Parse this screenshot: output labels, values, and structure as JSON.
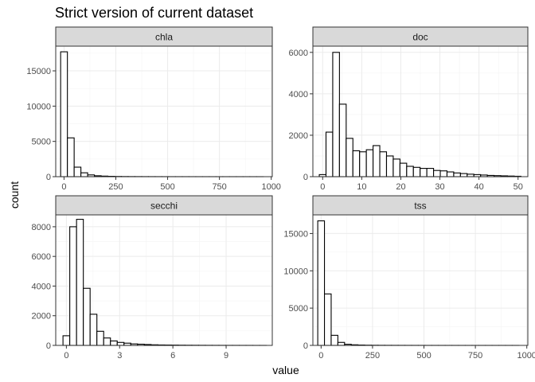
{
  "chart_data": {
    "type": "bar",
    "title": "Strict version of current dataset",
    "xlabel": "value",
    "ylabel": "count",
    "facets": [
      {
        "name": "chla",
        "xlim": [
          -40,
          1005
        ],
        "ylim": [
          0,
          18500
        ],
        "xticks": [
          0,
          250,
          500,
          750,
          1000
        ],
        "xtick_labels": [
          "0",
          "250",
          "500",
          "750",
          "1000"
        ],
        "yticks": [
          0,
          5000,
          10000,
          15000
        ],
        "ytick_labels": [
          "0",
          "5000",
          "10000",
          "15000"
        ],
        "binwidth": 32.6,
        "bin_start": -16.3,
        "counts": [
          17700,
          5500,
          1350,
          550,
          250,
          130,
          80,
          50,
          30,
          20,
          15,
          12,
          10,
          8,
          6,
          5,
          4,
          3,
          3,
          2,
          2,
          2,
          1,
          1,
          1,
          1,
          1,
          1,
          1,
          1
        ]
      },
      {
        "name": "doc",
        "xlim": [
          -2.5,
          52.5
        ],
        "ylim": [
          0,
          6300
        ],
        "xticks": [
          0,
          10,
          20,
          30,
          40,
          50
        ],
        "xtick_labels": [
          "0",
          "10",
          "20",
          "30",
          "40",
          "50"
        ],
        "yticks": [
          0,
          2000,
          4000,
          6000
        ],
        "ytick_labels": [
          "0",
          "2000",
          "4000",
          "6000"
        ],
        "binwidth": 1.72,
        "bin_start": -0.86,
        "counts": [
          100,
          2150,
          6000,
          3500,
          1850,
          1250,
          1200,
          1300,
          1500,
          1200,
          1000,
          850,
          650,
          500,
          450,
          400,
          400,
          300,
          280,
          230,
          180,
          150,
          120,
          100,
          80,
          60,
          50,
          40,
          30,
          20
        ]
      },
      {
        "name": "secchi",
        "xlim": [
          -0.6,
          11.6
        ],
        "ylim": [
          0,
          8800
        ],
        "xticks": [
          0,
          3,
          6,
          9
        ],
        "xtick_labels": [
          "0",
          "3",
          "6",
          "9"
        ],
        "yticks": [
          0,
          2000,
          4000,
          6000,
          8000
        ],
        "ytick_labels": [
          "0",
          "2000",
          "4000",
          "6000",
          "8000"
        ],
        "binwidth": 0.382,
        "bin_start": -0.191,
        "counts": [
          650,
          8000,
          8500,
          3850,
          2100,
          950,
          500,
          300,
          200,
          150,
          100,
          80,
          60,
          40,
          30,
          25,
          20,
          15,
          12,
          10,
          8,
          6,
          5,
          4,
          3,
          3,
          2,
          2,
          1,
          1
        ]
      },
      {
        "name": "tss",
        "xlim": [
          -40,
          1005
        ],
        "ylim": [
          0,
          17500
        ],
        "xticks": [
          0,
          250,
          500,
          750,
          1000
        ],
        "xtick_labels": [
          "0",
          "250",
          "500",
          "750",
          "1000"
        ],
        "yticks": [
          0,
          5000,
          10000,
          15000
        ],
        "ytick_labels": [
          "0",
          "5000",
          "10000",
          "15000"
        ],
        "binwidth": 32.6,
        "bin_start": -16.3,
        "counts": [
          16700,
          6900,
          1350,
          400,
          150,
          80,
          50,
          30,
          20,
          15,
          12,
          10,
          8,
          6,
          5,
          4,
          3,
          3,
          2,
          2,
          2,
          1,
          1,
          1,
          1,
          1,
          1,
          1,
          1,
          1
        ]
      }
    ]
  }
}
